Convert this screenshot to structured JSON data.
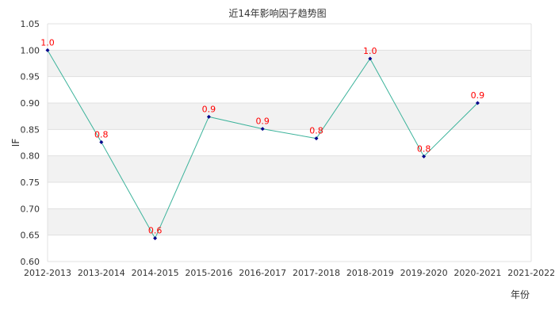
{
  "chart_data": {
    "type": "line",
    "title": "近14年影响因子趋势图",
    "xlabel": "年份",
    "ylabel": "IF",
    "categories": [
      "2012-2013",
      "2013-2014",
      "2014-2015",
      "2015-2016",
      "2016-2017",
      "2017-2018",
      "2018-2019",
      "2019-2020",
      "2020-2021",
      "2021-2022"
    ],
    "series": [
      {
        "name": "IF",
        "values": [
          1.0,
          0.826,
          0.644,
          0.874,
          0.851,
          0.833,
          0.984,
          0.799,
          0.9,
          null
        ],
        "data_labels": [
          "1.0",
          "0.8",
          "0.6",
          "0.9",
          "0.9",
          "0.8",
          "1.0",
          "0.8",
          "0.9",
          null
        ]
      }
    ],
    "ylim": [
      0.6,
      1.05
    ],
    "yticks": [
      "0.60",
      "0.65",
      "0.70",
      "0.75",
      "0.80",
      "0.85",
      "0.90",
      "0.95",
      "1.00",
      "1.05"
    ],
    "grid": true,
    "banded_background": true,
    "legend": null
  },
  "colors": {
    "line": "#3cb39b",
    "marker": "#00008b",
    "data_label": "#ff0000",
    "band": "#f2f2f2",
    "grid": "#e0e0e0",
    "text": "#333333"
  }
}
